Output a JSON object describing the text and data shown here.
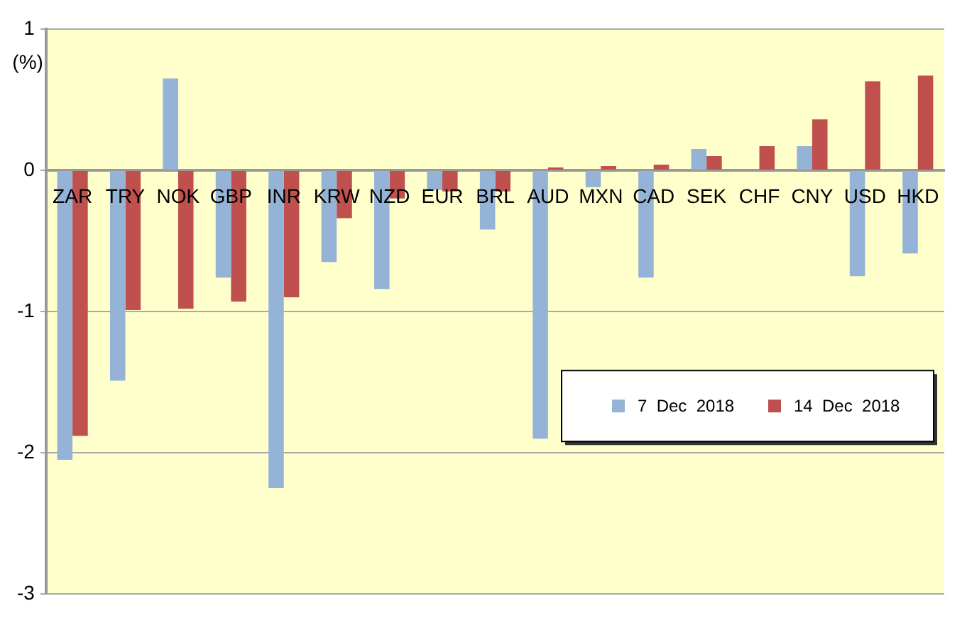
{
  "chart_data": {
    "type": "bar",
    "ylabel": "(%)",
    "categories": [
      "ZAR",
      "TRY",
      "NOK",
      "GBP",
      "INR",
      "KRW",
      "NZD",
      "EUR",
      "BRL",
      "AUD",
      "MXN",
      "CAD",
      "SEK",
      "CHF",
      "CNY",
      "USD",
      "HKD"
    ],
    "series": [
      {
        "name": "7  Dec  2018",
        "color": "#95b3d7",
        "values": [
          -2.05,
          -1.49,
          0.65,
          -0.76,
          -2.25,
          -0.65,
          -0.84,
          -0.14,
          -0.42,
          -1.9,
          -0.12,
          -0.76,
          0.15,
          0,
          0.17,
          -0.75,
          -0.59
        ]
      },
      {
        "name": "14  Dec  2018",
        "color": "#c0504d",
        "values": [
          -1.88,
          -0.99,
          -0.98,
          -0.93,
          -0.9,
          -0.34,
          -0.2,
          -0.15,
          -0.15,
          0.02,
          0.03,
          0.04,
          0.1,
          0.17,
          0.36,
          0.63,
          0.67
        ]
      }
    ],
    "ylim": [
      -3,
      1
    ],
    "yticks": [
      -3,
      -2,
      -1,
      0,
      1
    ],
    "grid": "y",
    "legend": "bottom right"
  }
}
